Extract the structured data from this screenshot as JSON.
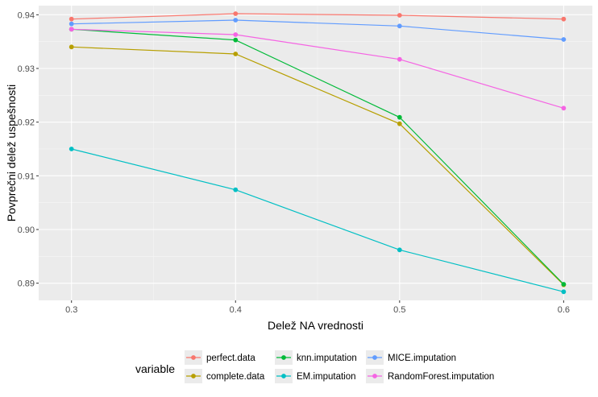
{
  "chart_data": {
    "type": "line",
    "x": [
      0.3,
      0.4,
      0.5,
      0.6
    ],
    "x_tick_labels": [
      "0.3",
      "0.4",
      "0.5",
      "0.6"
    ],
    "xlim": [
      0.28,
      0.6175
    ],
    "ylim": [
      0.8868,
      0.9417
    ],
    "y_ticks": [
      0.89,
      0.9,
      0.91,
      0.92,
      0.93,
      0.94
    ],
    "y_tick_labels": [
      "0.89",
      "0.90",
      "0.91",
      "0.92",
      "0.93",
      "0.94"
    ],
    "xlabel": "Delež NA vrednosti",
    "ylabel": "Povprečni delež uspešnosti",
    "grid": true,
    "legend": {
      "title": "variable",
      "position": "bottom"
    },
    "series": [
      {
        "name": "perfect.data",
        "color": "#F8766D",
        "values": [
          0.9392,
          0.9402,
          0.9399,
          0.9392
        ]
      },
      {
        "name": "complete.data",
        "color": "#B79F00",
        "values": [
          0.934,
          0.9327,
          0.9197,
          0.8897
        ]
      },
      {
        "name": "knn.imputation",
        "color": "#00BA38",
        "values": [
          0.9373,
          0.9353,
          0.9209,
          0.8898
        ]
      },
      {
        "name": "EM.imputation",
        "color": "#00BFC4",
        "values": [
          0.915,
          0.9074,
          0.8962,
          0.8884
        ]
      },
      {
        "name": "MICE.imputation",
        "color": "#619CFF",
        "values": [
          0.9383,
          0.939,
          0.9379,
          0.9354
        ]
      },
      {
        "name": "RandomForest.imputation",
        "color": "#F564E3",
        "values": [
          0.9373,
          0.9363,
          0.9317,
          0.9226
        ]
      }
    ]
  }
}
